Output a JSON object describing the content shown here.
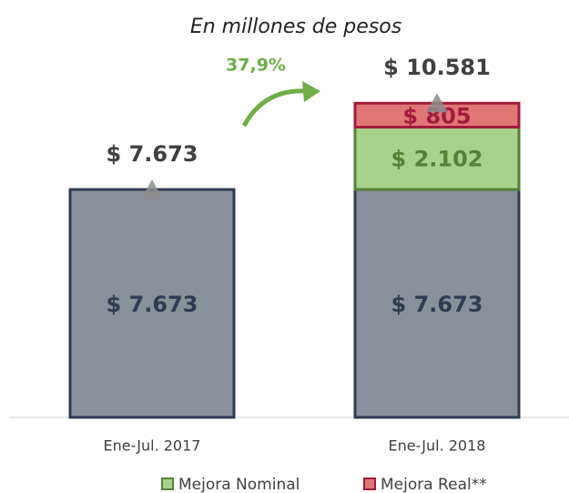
{
  "chart_data": {
    "type": "bar",
    "stacked": true,
    "title": "En millones de pesos",
    "categories": [
      "Ene-Jul. 2017",
      "Ene-Jul. 2018"
    ],
    "series": [
      {
        "color": "#8a909a",
        "stroke": "#2f3b52",
        "label_color": "#2f3b52",
        "values": [
          7673,
          7673
        ],
        "value_labels": [
          "$ 7.673",
          "$ 7.673"
        ]
      },
      {
        "name": "Mejora Nominal",
        "color": "#a9d18e",
        "stroke": "#548235",
        "label_color": "#548235",
        "values": [
          null,
          2102
        ],
        "value_labels": [
          null,
          "$ 2.102"
        ]
      },
      {
        "name": "Mejora Real**",
        "color": "#e07676",
        "stroke": "#a01d3a",
        "label_color": "#a01d3a",
        "values": [
          null,
          805
        ],
        "value_labels": [
          null,
          "$ 805"
        ]
      }
    ],
    "totals": {
      "values": [
        7673,
        10581
      ],
      "value_labels": [
        "$ 7.673",
        "$ 10.581"
      ]
    },
    "growth": {
      "value": 37.9,
      "label": "37,9%",
      "color": "#70ad47"
    },
    "ylim": [
      0,
      13000
    ]
  }
}
